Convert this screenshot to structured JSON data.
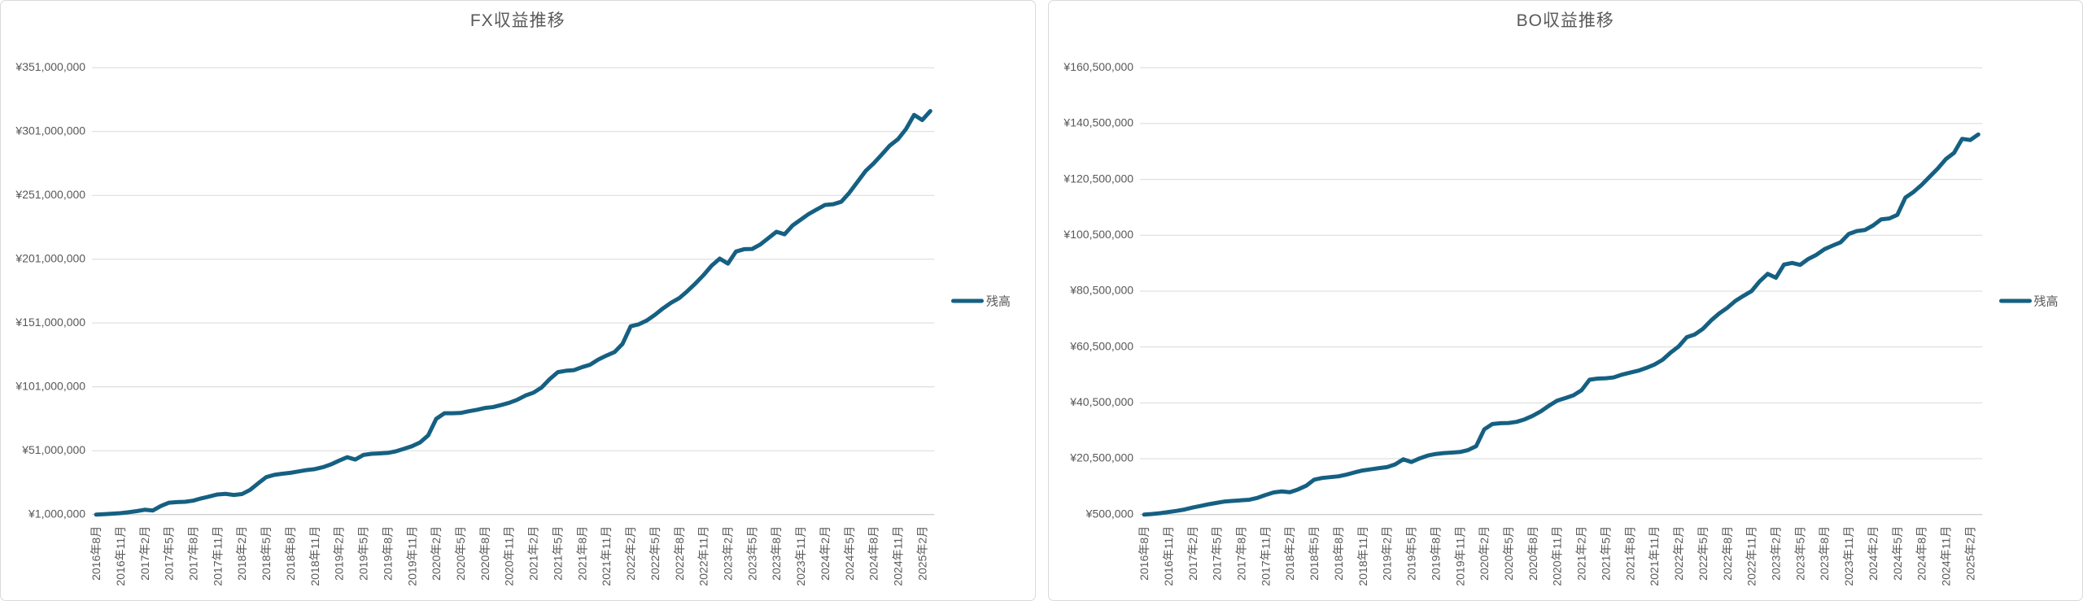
{
  "page": {
    "background": "#ffffff",
    "panel_border_color": "#d9d9d9",
    "gridline_color": "#d9d9d9",
    "axis_line_color": "#bfbfbf",
    "text_color": "#595959"
  },
  "chart_data": [
    {
      "type": "line",
      "title": "FX収益推移",
      "legend": {
        "label": "残高",
        "position": "right"
      },
      "grid": true,
      "n_points": 104,
      "x_range": "2016年8月 - 2025年3月 (monthly)",
      "x_tick_interval": 3,
      "x_tick_labels": [
        "2016年8月",
        "2016年11月",
        "2017年2月",
        "2017年5月",
        "2017年8月",
        "2017年11月",
        "2018年2月",
        "2018年5月",
        "2018年8月",
        "2018年11月",
        "2019年2月",
        "2019年5月",
        "2019年8月",
        "2019年11月",
        "2020年2月",
        "2020年5月",
        "2020年8月",
        "2020年11月",
        "2021年2月",
        "2021年5月",
        "2021年8月",
        "2021年11月",
        "2022年2月",
        "2022年5月",
        "2022年8月",
        "2022年11月",
        "2023年2月",
        "2023年5月",
        "2023年8月",
        "2023年11月",
        "2024年2月",
        "2024年5月",
        "2024年8月",
        "2024年11月",
        "2025年2月"
      ],
      "y_axis": {
        "min": 1000000,
        "max": 351000000,
        "step": 50000000,
        "tick_labels": [
          "¥1,000,000",
          "¥51,000,000",
          "¥101,000,000",
          "¥151,000,000",
          "¥201,000,000",
          "¥251,000,000",
          "¥301,000,000",
          "¥351,000,000"
        ]
      },
      "series": [
        {
          "name": "残高",
          "color": "#156082",
          "values": [
            1000000,
            1300000,
            1700000,
            2100000,
            2800000,
            3700000,
            4800000,
            4200000,
            7700000,
            10300000,
            10800000,
            11000000,
            11900000,
            13700000,
            15200000,
            16800000,
            17200000,
            16300000,
            17000000,
            20300000,
            25400000,
            30300000,
            32100000,
            33000000,
            33700000,
            34800000,
            35900000,
            36600000,
            38100000,
            40300000,
            43200000,
            45900000,
            44100000,
            47700000,
            48600000,
            48900000,
            49300000,
            50500000,
            52500000,
            54500000,
            57500000,
            63000000,
            76000000,
            80300000,
            80400000,
            80600000,
            81900000,
            83000000,
            84500000,
            85200000,
            86800000,
            88500000,
            90900000,
            94200000,
            96500000,
            100500000,
            107000000,
            112500000,
            113600000,
            114100000,
            116500000,
            118400000,
            122400000,
            125500000,
            128200000,
            134700000,
            148500000,
            150000000,
            153000000,
            157500000,
            162500000,
            166900000,
            170500000,
            176000000,
            182000000,
            188500000,
            196000000,
            201500000,
            197500000,
            207000000,
            208800000,
            209000000,
            212500000,
            217500000,
            222500000,
            220500000,
            227500000,
            232000000,
            236500000,
            240000000,
            243500000,
            244000000,
            246000000,
            253000000,
            261500000,
            270000000,
            276000000,
            283000000,
            290000000,
            295000000,
            303000000,
            314000000,
            310000000,
            317000000
          ]
        }
      ]
    },
    {
      "type": "line",
      "title": "BO収益推移",
      "legend": {
        "label": "残高",
        "position": "right"
      },
      "grid": true,
      "n_points": 104,
      "x_range": "2016年8月 - 2025年3月 (monthly)",
      "x_tick_interval": 3,
      "x_tick_labels": [
        "2016年8月",
        "2016年11月",
        "2017年2月",
        "2017年5月",
        "2017年8月",
        "2017年11月",
        "2018年2月",
        "2018年5月",
        "2018年8月",
        "2018年11月",
        "2019年2月",
        "2019年5月",
        "2019年8月",
        "2019年11月",
        "2020年2月",
        "2020年5月",
        "2020年8月",
        "2020年11月",
        "2021年2月",
        "2021年5月",
        "2021年8月",
        "2021年11月",
        "2022年2月",
        "2022年5月",
        "2022年8月",
        "2022年11月",
        "2023年2月",
        "2023年5月",
        "2023年8月",
        "2023年11月",
        "2024年2月",
        "2024年5月",
        "2024年8月",
        "2024年11月",
        "2025年2月"
      ],
      "y_axis": {
        "min": 500000,
        "max": 160500000,
        "step": 20000000,
        "tick_labels": [
          "¥500,000",
          "¥20,500,000",
          "¥40,500,000",
          "¥60,500,000",
          "¥80,500,000",
          "¥100,500,000",
          "¥120,500,000",
          "¥140,500,000",
          "¥160,500,000"
        ]
      },
      "series": [
        {
          "name": "残高",
          "color": "#156082",
          "values": [
            500000,
            700000,
            1000000,
            1400000,
            1800000,
            2300000,
            3000000,
            3600000,
            4200000,
            4700000,
            5200000,
            5400000,
            5600000,
            5800000,
            6500000,
            7500000,
            8400000,
            8800000,
            8500000,
            9500000,
            10800000,
            13000000,
            13600000,
            13900000,
            14200000,
            14800000,
            15600000,
            16300000,
            16700000,
            17100000,
            17500000,
            18500000,
            20300000,
            19300000,
            20600000,
            21600000,
            22200000,
            22500000,
            22700000,
            22900000,
            23600000,
            25000000,
            31000000,
            32900000,
            33200000,
            33300000,
            33700000,
            34600000,
            35900000,
            37500000,
            39500000,
            41300000,
            42200000,
            43200000,
            45000000,
            48800000,
            49200000,
            49300000,
            49600000,
            50600000,
            51300000,
            52000000,
            53000000,
            54200000,
            55900000,
            58500000,
            60700000,
            64000000,
            65000000,
            67000000,
            70000000,
            72500000,
            74500000,
            77000000,
            78800000,
            80500000,
            84000000,
            86700000,
            85300000,
            90000000,
            90600000,
            89900000,
            92000000,
            93500000,
            95500000,
            96800000,
            98000000,
            101000000,
            102000000,
            102400000,
            104000000,
            106200000,
            106500000,
            107800000,
            114000000,
            116000000,
            118500000,
            121500000,
            124400000,
            127800000,
            130000000,
            135000000,
            134600000,
            136600000
          ]
        }
      ]
    }
  ]
}
